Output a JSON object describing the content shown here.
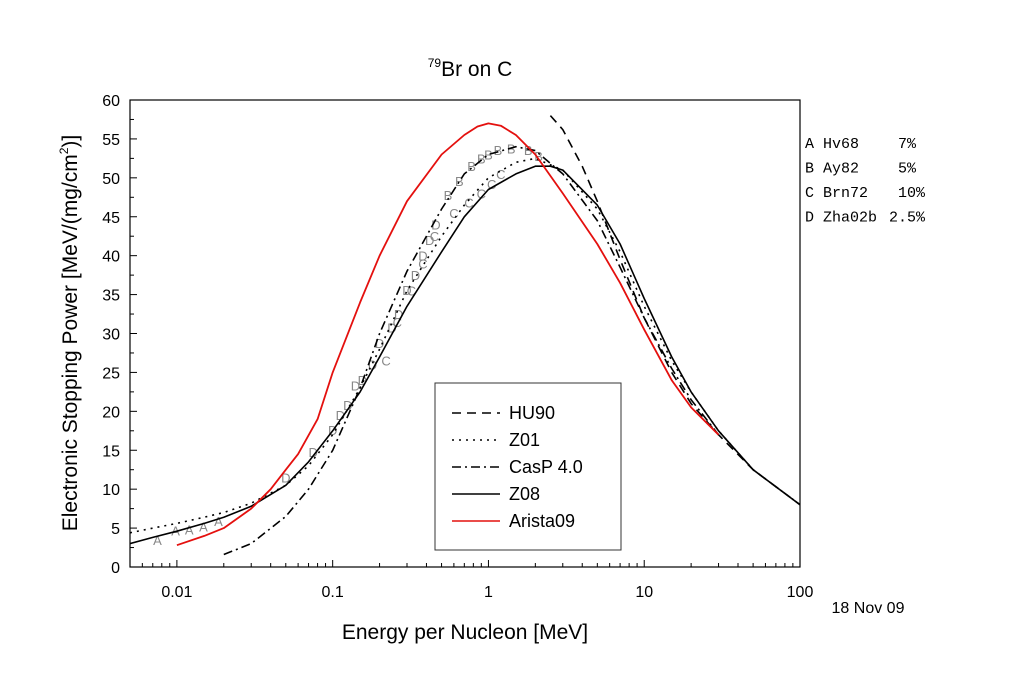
{
  "chart_data": {
    "type": "line",
    "title": {
      "superscript": "79",
      "text": "Br on C"
    },
    "xlabel": "Energy per Nucleon [MeV]",
    "ylabel": "Electronic Stopping Power [MeV/(mg/cm",
    "ylabel_sup": "2",
    "ylabel_end": ")]",
    "xscale": "log",
    "xlim": [
      0.005,
      100
    ],
    "ylim": [
      0,
      60
    ],
    "x_ticks": [
      {
        "v": 0.01,
        "label": "0.01"
      },
      {
        "v": 0.1,
        "label": "0.1"
      },
      {
        "v": 1,
        "label": "1"
      },
      {
        "v": 10,
        "label": "10"
      },
      {
        "v": 100,
        "label": "100"
      }
    ],
    "y_ticks": [
      0,
      5,
      10,
      15,
      20,
      25,
      30,
      35,
      40,
      45,
      50,
      55,
      60
    ],
    "grid": false,
    "legend_position": "bottom-center",
    "date": "18 Nov 09",
    "references": [
      {
        "letter": "A",
        "ref": "Hv68",
        "err": "7%"
      },
      {
        "letter": "B",
        "ref": "Ay82",
        "err": "5%"
      },
      {
        "letter": "C",
        "ref": "Brn72",
        "err": "10%"
      },
      {
        "letter": "D",
        "ref": "Zha02b",
        "err": "2.5%"
      }
    ],
    "series": [
      {
        "name": "HU90",
        "color": "#000000",
        "dash": "9,6",
        "x": [
          2.5,
          3,
          4,
          5,
          7,
          10,
          15,
          20,
          30,
          50,
          100
        ],
        "y": [
          58,
          56.2,
          51.5,
          47,
          39.5,
          32,
          25,
          21,
          17,
          12.5,
          8
        ]
      },
      {
        "name": "Z01",
        "color": "#000000",
        "dash": "2,5",
        "x": [
          0.005,
          0.007,
          0.01,
          0.015,
          0.02,
          0.03,
          0.05,
          0.07,
          0.1,
          0.15,
          0.2,
          0.3,
          0.5,
          0.7,
          1,
          1.5,
          2,
          3,
          5,
          7,
          10,
          15,
          20,
          30,
          50,
          100
        ],
        "y": [
          4.4,
          5.0,
          5.6,
          6.4,
          7.0,
          8.2,
          10.5,
          13,
          17,
          23,
          28,
          35.5,
          42.5,
          46.5,
          50,
          52,
          52.5,
          51,
          46,
          40.5,
          33.5,
          26.5,
          22.5,
          17.5,
          12.5,
          8
        ]
      },
      {
        "name": "CasP 4.0",
        "color": "#000000",
        "dash": "9,4,2,4",
        "x": [
          0.02,
          0.03,
          0.05,
          0.07,
          0.1,
          0.15,
          0.2,
          0.3,
          0.5,
          0.7,
          1,
          1.5,
          2,
          3,
          5,
          7,
          10,
          15,
          20,
          30
        ],
        "y": [
          1.6,
          3,
          6.5,
          10,
          15,
          23,
          30,
          38,
          46,
          50.5,
          53,
          54,
          53.5,
          50.5,
          44.5,
          38.5,
          32,
          25.5,
          21.5,
          17
        ]
      },
      {
        "name": "Z08",
        "color": "#000000",
        "dash": "",
        "x": [
          0.005,
          0.007,
          0.01,
          0.015,
          0.02,
          0.03,
          0.05,
          0.07,
          0.1,
          0.15,
          0.2,
          0.3,
          0.5,
          0.7,
          1,
          1.5,
          2,
          2.5,
          3,
          5,
          7,
          10,
          15,
          20,
          30,
          50,
          100
        ],
        "y": [
          3.0,
          3.8,
          4.6,
          5.6,
          6.4,
          7.8,
          10.5,
          13.5,
          17.5,
          22.5,
          27,
          33.5,
          40.5,
          45,
          48.5,
          50.5,
          51.5,
          51.5,
          51,
          46.5,
          41.5,
          34.5,
          27,
          22.5,
          17.5,
          12.5,
          8
        ]
      },
      {
        "name": "Arista09",
        "color": "#e4100e",
        "dash": "",
        "x": [
          0.01,
          0.015,
          0.02,
          0.03,
          0.04,
          0.05,
          0.06,
          0.08,
          0.1,
          0.15,
          0.2,
          0.3,
          0.5,
          0.7,
          0.85,
          1,
          1.2,
          1.5,
          2,
          3,
          5,
          7,
          10,
          15,
          20,
          30
        ],
        "y": [
          2.8,
          4,
          5,
          7.5,
          10,
          12.5,
          14.5,
          19,
          25,
          34,
          40,
          47,
          53,
          55.5,
          56.6,
          57,
          56.7,
          55.5,
          53,
          48,
          41.5,
          36.5,
          30.5,
          24,
          20.5,
          17
        ]
      }
    ],
    "points": [
      {
        "l": "A",
        "x": 0.0075,
        "y": 3.5
      },
      {
        "l": "A",
        "x": 0.0098,
        "y": 4.7
      },
      {
        "l": "A",
        "x": 0.012,
        "y": 4.8
      },
      {
        "l": "A",
        "x": 0.0148,
        "y": 5.2
      },
      {
        "l": "A",
        "x": 0.0185,
        "y": 5.9
      },
      {
        "l": "D",
        "x": 0.05,
        "y": 11.5
      },
      {
        "l": "D",
        "x": 0.075,
        "y": 14.8
      },
      {
        "l": "D",
        "x": 0.1,
        "y": 17.6
      },
      {
        "l": "D",
        "x": 0.112,
        "y": 19.5
      },
      {
        "l": "D",
        "x": 0.125,
        "y": 20.8
      },
      {
        "l": "D",
        "x": 0.14,
        "y": 23.3
      },
      {
        "l": "D",
        "x": 0.155,
        "y": 24
      },
      {
        "l": "D",
        "x": 0.18,
        "y": 26
      },
      {
        "l": "D",
        "x": 0.2,
        "y": 28.8
      },
      {
        "l": "D",
        "x": 0.24,
        "y": 30.8
      },
      {
        "l": "D",
        "x": 0.265,
        "y": 32.5
      },
      {
        "l": "D",
        "x": 0.3,
        "y": 35.6
      },
      {
        "l": "D",
        "x": 0.34,
        "y": 37.5
      },
      {
        "l": "D",
        "x": 0.38,
        "y": 40
      },
      {
        "l": "D",
        "x": 0.42,
        "y": 42
      },
      {
        "l": "D",
        "x": 0.46,
        "y": 44
      },
      {
        "l": "C",
        "x": 0.22,
        "y": 26.5
      },
      {
        "l": "C",
        "x": 0.26,
        "y": 31.5
      },
      {
        "l": "C",
        "x": 0.32,
        "y": 35.5
      },
      {
        "l": "C",
        "x": 0.38,
        "y": 39
      },
      {
        "l": "C",
        "x": 0.45,
        "y": 42.5
      },
      {
        "l": "C",
        "x": 0.6,
        "y": 45.5
      },
      {
        "l": "C",
        "x": 0.75,
        "y": 46.8
      },
      {
        "l": "C",
        "x": 0.9,
        "y": 48
      },
      {
        "l": "C",
        "x": 1.05,
        "y": 49.2
      },
      {
        "l": "C",
        "x": 1.2,
        "y": 50.5
      },
      {
        "l": "B",
        "x": 0.55,
        "y": 47.8
      },
      {
        "l": "B",
        "x": 0.65,
        "y": 49.6
      },
      {
        "l": "B",
        "x": 0.78,
        "y": 51.5
      },
      {
        "l": "B",
        "x": 0.9,
        "y": 52.5
      },
      {
        "l": "B",
        "x": 1.0,
        "y": 53
      },
      {
        "l": "B",
        "x": 1.15,
        "y": 53.6
      },
      {
        "l": "B",
        "x": 1.4,
        "y": 53.8
      },
      {
        "l": "B",
        "x": 1.8,
        "y": 53.6
      },
      {
        "l": "B",
        "x": 2.1,
        "y": 52.8
      }
    ]
  }
}
